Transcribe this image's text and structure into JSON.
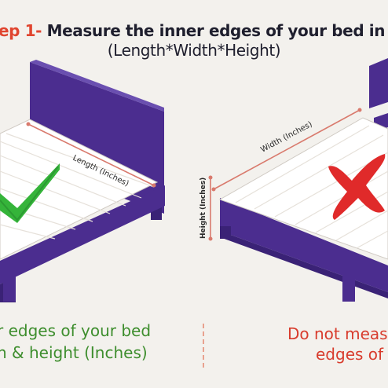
{
  "header": {
    "step_label": "ep 1-",
    "title": " Measure the inner edges of your bed in inch",
    "subtitle": "(Length*Width*Height)"
  },
  "left_panel": {
    "dimension_label": "Length (Inches)",
    "caption_line1": "r edges of your bed",
    "caption_line2": "h & height (Inches)",
    "mark_icon": "check-icon"
  },
  "right_panel": {
    "width_label": "Width (Inches)",
    "height_label": "Height (Inches)",
    "caption_line1": "Do not measu",
    "caption_line2": "edges of",
    "mark_icon": "cross-icon"
  },
  "colors": {
    "frame": "#4b2d8f",
    "frame_dark": "#3a2276",
    "mattress": "#ffffff",
    "dimension_line": "#d97a6d",
    "check": "#35b43a",
    "cross": "#e02a2a",
    "good_text": "#3e8e2e",
    "bad_text": "#d83c2d"
  }
}
